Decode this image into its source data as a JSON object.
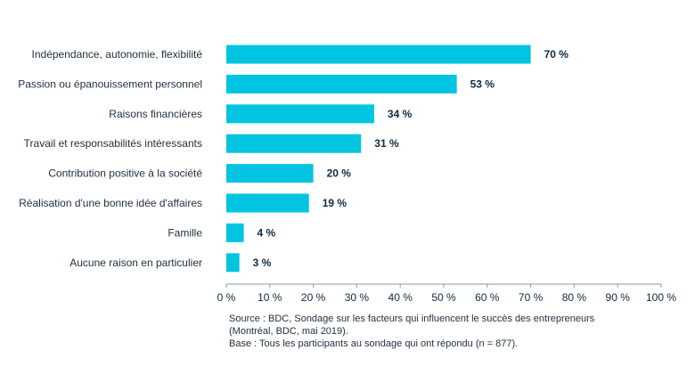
{
  "chart_data": {
    "type": "bar",
    "orientation": "horizontal",
    "categories": [
      "Indépendance, autonomie, flexibilité",
      "Passion ou épanouissement personnel",
      "Raisons financières",
      "Travail et responsabilités intéressants",
      "Contribution positive à la société",
      "Réalisation d'une bonne idée d'affaires",
      "Famille",
      "Aucune raison en particulier"
    ],
    "values": [
      70,
      53,
      34,
      31,
      20,
      19,
      4,
      3
    ],
    "value_labels": [
      "70 %",
      "53 %",
      "34 %",
      "31 %",
      "20 %",
      "19 %",
      "4 %",
      "3 %"
    ],
    "xlim": [
      0,
      100
    ],
    "x_ticks": [
      0,
      10,
      20,
      30,
      40,
      50,
      60,
      70,
      80,
      90,
      100
    ],
    "x_tick_labels": [
      "0 %",
      "10 %",
      "20 %",
      "30 %",
      "40 %",
      "50 %",
      "60 %",
      "70 %",
      "80 %",
      "90 %",
      "100 %"
    ],
    "grid": false,
    "bar_color": "#00c4e0",
    "axis_color": "#8a9aa8"
  },
  "notes": {
    "source_line1": "Source : BDC, Sondage sur les facteurs qui influencent le succès des entrepreneurs",
    "source_line2": "(Montréal, BDC, mai 2019).",
    "base_line": "Base : Tous les participants au sondage qui ont répondu (n = 877)."
  }
}
